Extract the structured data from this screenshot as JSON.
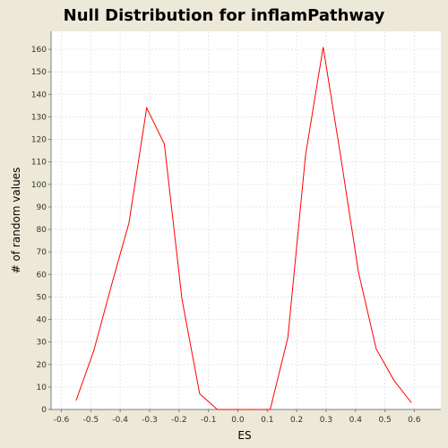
{
  "chart_data": {
    "type": "line",
    "title": "Null Distribution for inflamPathway",
    "xlabel": "ES",
    "ylabel": "# of random values",
    "xlim": [
      -0.635,
      0.69
    ],
    "ylim": [
      0,
      168
    ],
    "xticks": [
      -0.6,
      -0.5,
      -0.4,
      -0.3,
      -0.2,
      -0.1,
      0.0,
      0.1,
      0.2,
      0.3,
      0.4,
      0.5,
      0.6
    ],
    "xtick_labels": [
      "-0.6",
      "-0.5",
      "-0.4",
      "-0.3",
      "-0.2",
      "-0.1",
      "0.0",
      "0.1",
      "0.2",
      "0.3",
      "0.4",
      "0.5",
      "0.6"
    ],
    "yticks": [
      0,
      10,
      20,
      30,
      40,
      50,
      60,
      70,
      80,
      90,
      100,
      110,
      120,
      130,
      140,
      150,
      160
    ],
    "ytick_labels": [
      "0",
      "10",
      "20",
      "30",
      "40",
      "50",
      "60",
      "70",
      "80",
      "90",
      "100",
      "110",
      "120",
      "130",
      "140",
      "150",
      "160"
    ],
    "grid": true,
    "series": [
      {
        "color": "#ff0000",
        "x": [
          -0.55,
          -0.49,
          -0.43,
          -0.37,
          -0.31,
          -0.25,
          -0.19,
          -0.13,
          -0.07,
          -0.01,
          0.05,
          0.11,
          0.17,
          0.23,
          0.29,
          0.35,
          0.41,
          0.47,
          0.53,
          0.59
        ],
        "y": [
          4,
          26,
          55,
          83,
          134,
          118,
          49,
          7,
          0,
          0,
          0,
          0,
          32,
          113,
          161,
          112,
          61,
          27,
          13,
          3
        ]
      }
    ]
  }
}
